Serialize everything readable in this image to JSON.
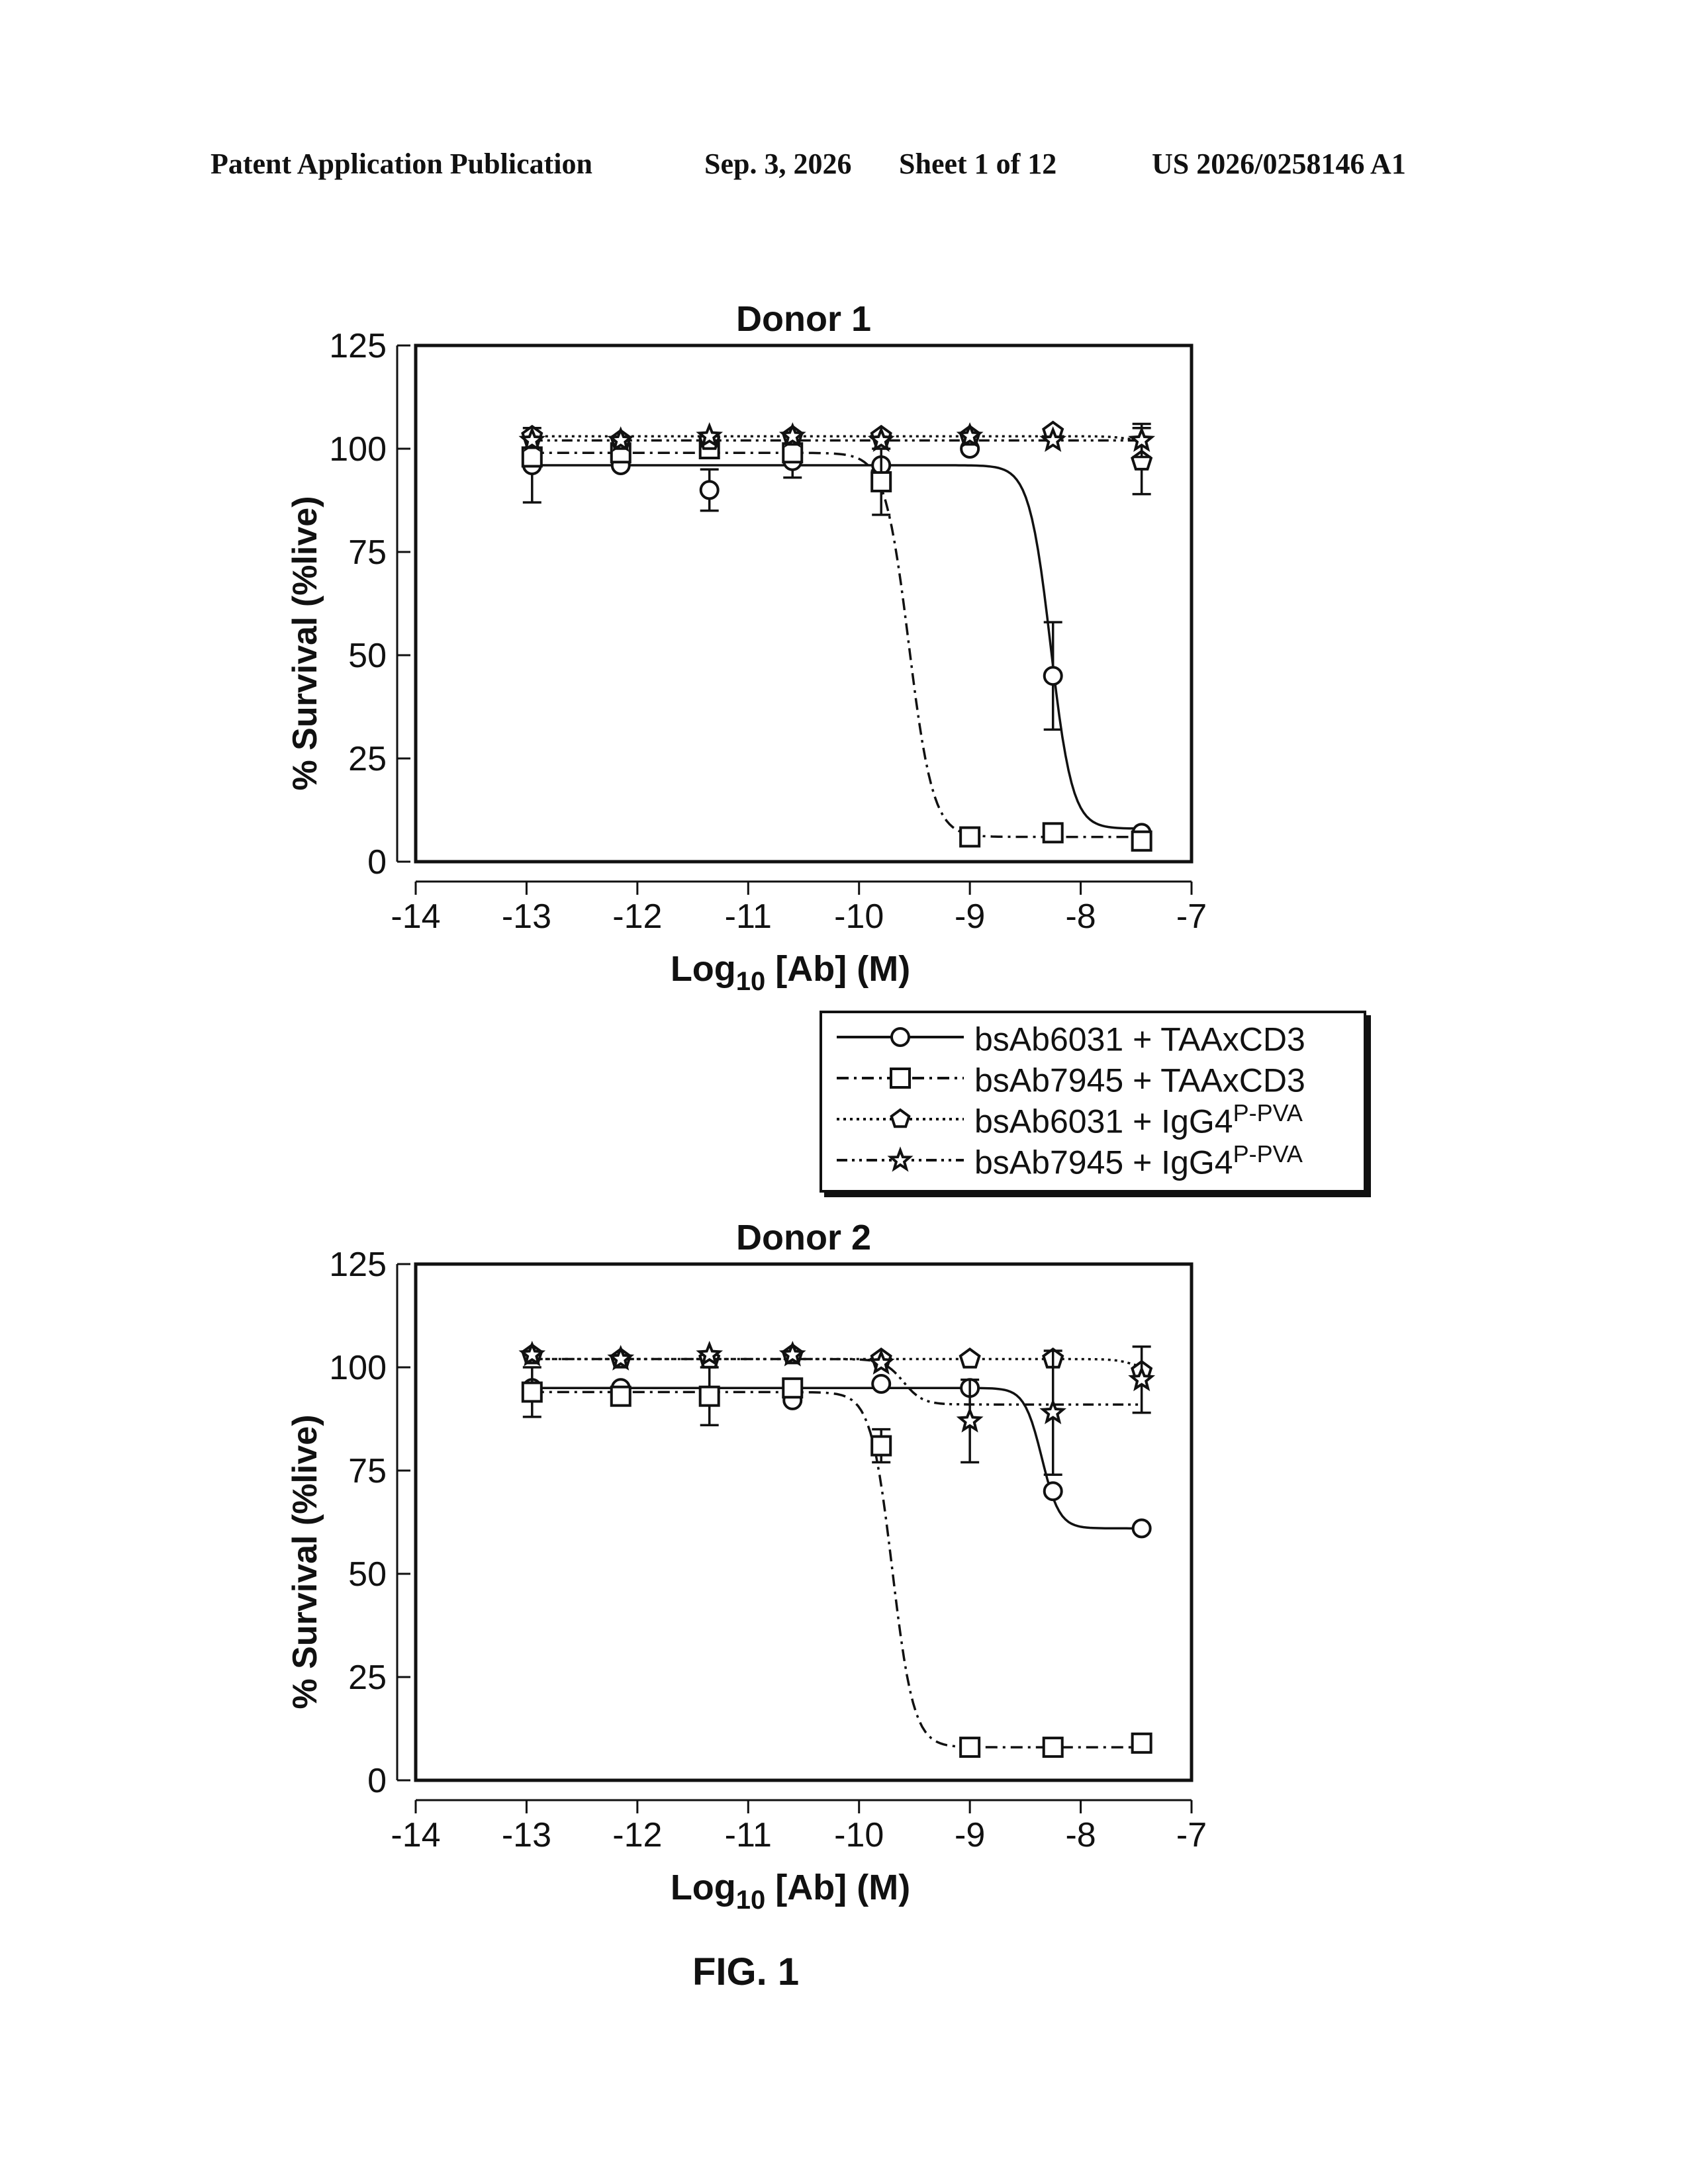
{
  "header": {
    "left": "Patent Application Publication",
    "date": "Sep. 3, 2026",
    "sheet": "Sheet 1 of 12",
    "number": "US 2026/0258146 A1"
  },
  "figure_label": "FIG. 1",
  "legend": {
    "items": [
      {
        "prefix": "bsAb6031 + TAAxCD3",
        "sup": ""
      },
      {
        "prefix": "bsAb7945 + TAAxCD3",
        "sup": ""
      },
      {
        "prefix": "bsAb6031 + IgG4",
        "sup": "P-PVA"
      },
      {
        "prefix": "bsAb7945 + IgG4",
        "sup": "P-PVA"
      }
    ]
  },
  "chart_data": [
    {
      "type": "line",
      "title": "Donor 1",
      "xlabel_main": "Log",
      "xlabel_sub": "10",
      "xlabel_rest": " [Ab] (M)",
      "ylabel": "% Survival (%live)",
      "xlim": [
        -14,
        -7
      ],
      "ylim": [
        0,
        125
      ],
      "xticks": [
        "-14",
        "-13",
        "-12",
        "-11",
        "-10",
        "-9",
        "-8",
        "-7"
      ],
      "yticks": [
        "0",
        "25",
        "50",
        "75",
        "100",
        "125"
      ],
      "x": [
        -12.95,
        -12.15,
        -11.35,
        -10.6,
        -9.8,
        -9.0,
        -8.25,
        -7.45
      ],
      "series": [
        {
          "name": "bsAb6031 + TAAxCD3",
          "marker": "circle",
          "dash": "",
          "values": [
            96,
            96,
            90,
            97,
            96,
            100,
            45,
            7
          ],
          "err": [
            9,
            0,
            5,
            4,
            0,
            0,
            13,
            0
          ],
          "fit": {
            "top": 96,
            "bottom": 8,
            "ec50": -8.27,
            "hill": 4.5
          }
        },
        {
          "name": "bsAb7945 + TAAxCD3",
          "marker": "square",
          "dash": "18 8 4 8",
          "values": [
            98,
            99,
            100,
            99,
            92,
            6,
            7,
            5
          ],
          "err": [
            0,
            0,
            0,
            0,
            8,
            0,
            0,
            0
          ],
          "fit": {
            "top": 99,
            "bottom": 6,
            "ec50": -9.55,
            "hill": 4.0
          }
        },
        {
          "name": "bsAb6031 + IgG4 P-PVA",
          "marker": "pentagon",
          "dash": "4 6",
          "values": [
            103,
            102,
            102,
            103,
            103,
            103,
            104,
            97
          ],
          "err": [
            0,
            0,
            0,
            0,
            0,
            0,
            0,
            8
          ],
          "fit": {
            "top": 103,
            "bottom": 102,
            "ec50": -7.6,
            "hill": 6
          }
        },
        {
          "name": "bsAb7945 + IgG4 P-PVA",
          "marker": "star",
          "dash": "16 7 4 7 4 7",
          "values": [
            102,
            102,
            103,
            103,
            102,
            103,
            102,
            102
          ],
          "err": [
            0,
            0,
            0,
            0,
            0,
            0,
            0,
            4
          ],
          "fit": {
            "top": 102,
            "bottom": 102,
            "ec50": -8,
            "hill": 1
          }
        }
      ]
    },
    {
      "type": "line",
      "title": "Donor 2",
      "xlabel_main": "Log",
      "xlabel_sub": "10",
      "xlabel_rest": " [Ab] (M)",
      "ylabel": "% Survival (%live)",
      "xlim": [
        -14,
        -7
      ],
      "ylim": [
        0,
        125
      ],
      "xticks": [
        "-14",
        "-13",
        "-12",
        "-11",
        "-10",
        "-9",
        "-8",
        "-7"
      ],
      "yticks": [
        "0",
        "25",
        "50",
        "75",
        "100",
        "125"
      ],
      "x": [
        -12.95,
        -12.15,
        -11.35,
        -10.6,
        -9.8,
        -9.0,
        -8.25,
        -7.45
      ],
      "series": [
        {
          "name": "bsAb6031 + TAAxCD3",
          "marker": "circle",
          "dash": "",
          "values": [
            95,
            95,
            93,
            92,
            96,
            95,
            70,
            61
          ],
          "err": [
            0,
            0,
            0,
            0,
            0,
            0,
            0,
            0
          ],
          "fit": {
            "top": 95,
            "bottom": 61,
            "ec50": -8.35,
            "hill": 5.5
          }
        },
        {
          "name": "bsAb7945 + TAAxCD3",
          "marker": "square",
          "dash": "18 8 4 8",
          "values": [
            94,
            93,
            93,
            95,
            81,
            8,
            8,
            9
          ],
          "err": [
            6,
            0,
            7,
            0,
            4,
            0,
            0,
            0
          ],
          "fit": {
            "top": 94,
            "bottom": 8,
            "ec50": -9.7,
            "hill": 4.5
          }
        },
        {
          "name": "bsAb6031 + IgG4 P-PVA",
          "marker": "pentagon",
          "dash": "4 6",
          "values": [
            103,
            102,
            102,
            103,
            102,
            102,
            102,
            99
          ],
          "err": [
            0,
            0,
            0,
            0,
            0,
            0,
            0,
            0
          ],
          "fit": {
            "top": 102,
            "bottom": 99,
            "ec50": -7.5,
            "hill": 5
          }
        },
        {
          "name": "bsAb7945 + IgG4 P-PVA",
          "marker": "star",
          "dash": "16 7 4 7 4 7",
          "values": [
            103,
            102,
            103,
            103,
            101,
            87,
            89,
            97
          ],
          "err": [
            0,
            0,
            0,
            0,
            0,
            10,
            15,
            8
          ],
          "fit": {
            "top": 102,
            "bottom": 91,
            "ec50": -9.6,
            "hill": 5
          }
        }
      ]
    }
  ]
}
